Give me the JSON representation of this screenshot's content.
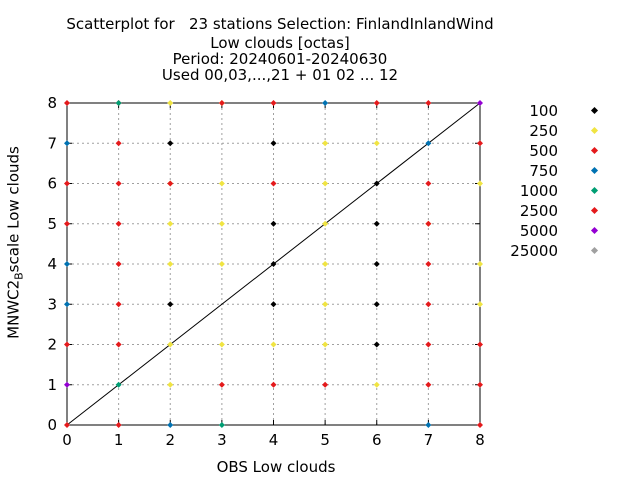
{
  "title_lines": [
    "Scatterplot for   23 stations Selection: FinlandInlandWind",
    "Low clouds [octas]",
    "Period: 20240601-20240630",
    "Used 00,03,...,21 + 01 02 ... 12"
  ],
  "chart_data": {
    "type": "scatter",
    "xlabel": "OBS Low clouds",
    "ylabel_main": "MNWC2",
    "ylabel_sub": "B",
    "ylabel_rest": "scale Low clouds",
    "xlim": [
      0,
      8
    ],
    "ylim": [
      0,
      8
    ],
    "xticks": [
      "0",
      "1",
      "2",
      "3",
      "4",
      "5",
      "6",
      "7",
      "8"
    ],
    "yticks": [
      "0",
      "1",
      "2",
      "3",
      "4",
      "5",
      "6",
      "7",
      "8"
    ],
    "grid": true,
    "diagonal": true,
    "legend_position": "right",
    "series": [
      {
        "name": "100",
        "color": "#000000",
        "points": [
          [
            2,
            7
          ],
          [
            4,
            7
          ],
          [
            4,
            5
          ],
          [
            4,
            4
          ],
          [
            6,
            6
          ],
          [
            6,
            5
          ],
          [
            6,
            4
          ],
          [
            2,
            3
          ],
          [
            4,
            3
          ],
          [
            6,
            3
          ],
          [
            6,
            2
          ]
        ]
      },
      {
        "name": "250",
        "color": "#f0e442",
        "points": [
          [
            2,
            8
          ],
          [
            3,
            8
          ],
          [
            2,
            6
          ],
          [
            3,
            6
          ],
          [
            2,
            5
          ],
          [
            3,
            5
          ],
          [
            2,
            4
          ],
          [
            3,
            4
          ],
          [
            5,
            7
          ],
          [
            6,
            7
          ],
          [
            5,
            6
          ],
          [
            5,
            5
          ],
          [
            5,
            4
          ],
          [
            5,
            3
          ],
          [
            7,
            5
          ],
          [
            8,
            6
          ],
          [
            8,
            4
          ],
          [
            8,
            3
          ],
          [
            2,
            2
          ],
          [
            3,
            2
          ],
          [
            4,
            2
          ],
          [
            5,
            2
          ],
          [
            6,
            1
          ],
          [
            2,
            1
          ]
        ]
      },
      {
        "name": "500",
        "color": "#e41a1c",
        "points": [
          [
            0,
            8
          ],
          [
            1,
            7
          ],
          [
            0,
            6
          ],
          [
            0,
            5
          ],
          [
            0,
            2
          ],
          [
            1,
            6
          ],
          [
            1,
            5
          ],
          [
            1,
            4
          ],
          [
            1,
            3
          ],
          [
            1,
            2
          ],
          [
            1,
            8
          ],
          [
            4,
            8
          ],
          [
            6,
            8
          ],
          [
            7,
            8
          ],
          [
            8,
            7
          ],
          [
            7,
            6
          ],
          [
            7,
            5
          ],
          [
            7,
            4
          ],
          [
            7,
            3
          ],
          [
            7,
            2
          ],
          [
            7,
            1
          ],
          [
            8,
            2
          ],
          [
            8,
            1
          ],
          [
            3,
            1
          ],
          [
            4,
            1
          ],
          [
            5,
            1
          ],
          [
            1,
            0
          ],
          [
            8,
            0
          ]
        ]
      },
      {
        "name": "750",
        "color": "#0072b2",
        "points": [
          [
            0,
            7
          ],
          [
            0,
            4
          ],
          [
            0,
            3
          ],
          [
            5,
            8
          ],
          [
            7,
            7
          ],
          [
            2,
            0
          ],
          [
            7,
            0
          ]
        ]
      },
      {
        "name": "1000",
        "color": "#009e73",
        "points": [
          [
            1,
            8
          ],
          [
            1,
            1
          ],
          [
            3,
            0
          ]
        ]
      },
      {
        "name": "2500",
        "color": "#e41a1c",
        "points": [
          [
            3,
            8
          ],
          [
            4,
            6
          ],
          [
            2,
            6
          ],
          [
            0,
            0
          ]
        ]
      },
      {
        "name": "5000",
        "color": "#9400d3",
        "points": [
          [
            0,
            1
          ],
          [
            8,
            8
          ]
        ]
      },
      {
        "name": "25000",
        "color": "#a0a0a0",
        "points": []
      }
    ]
  }
}
